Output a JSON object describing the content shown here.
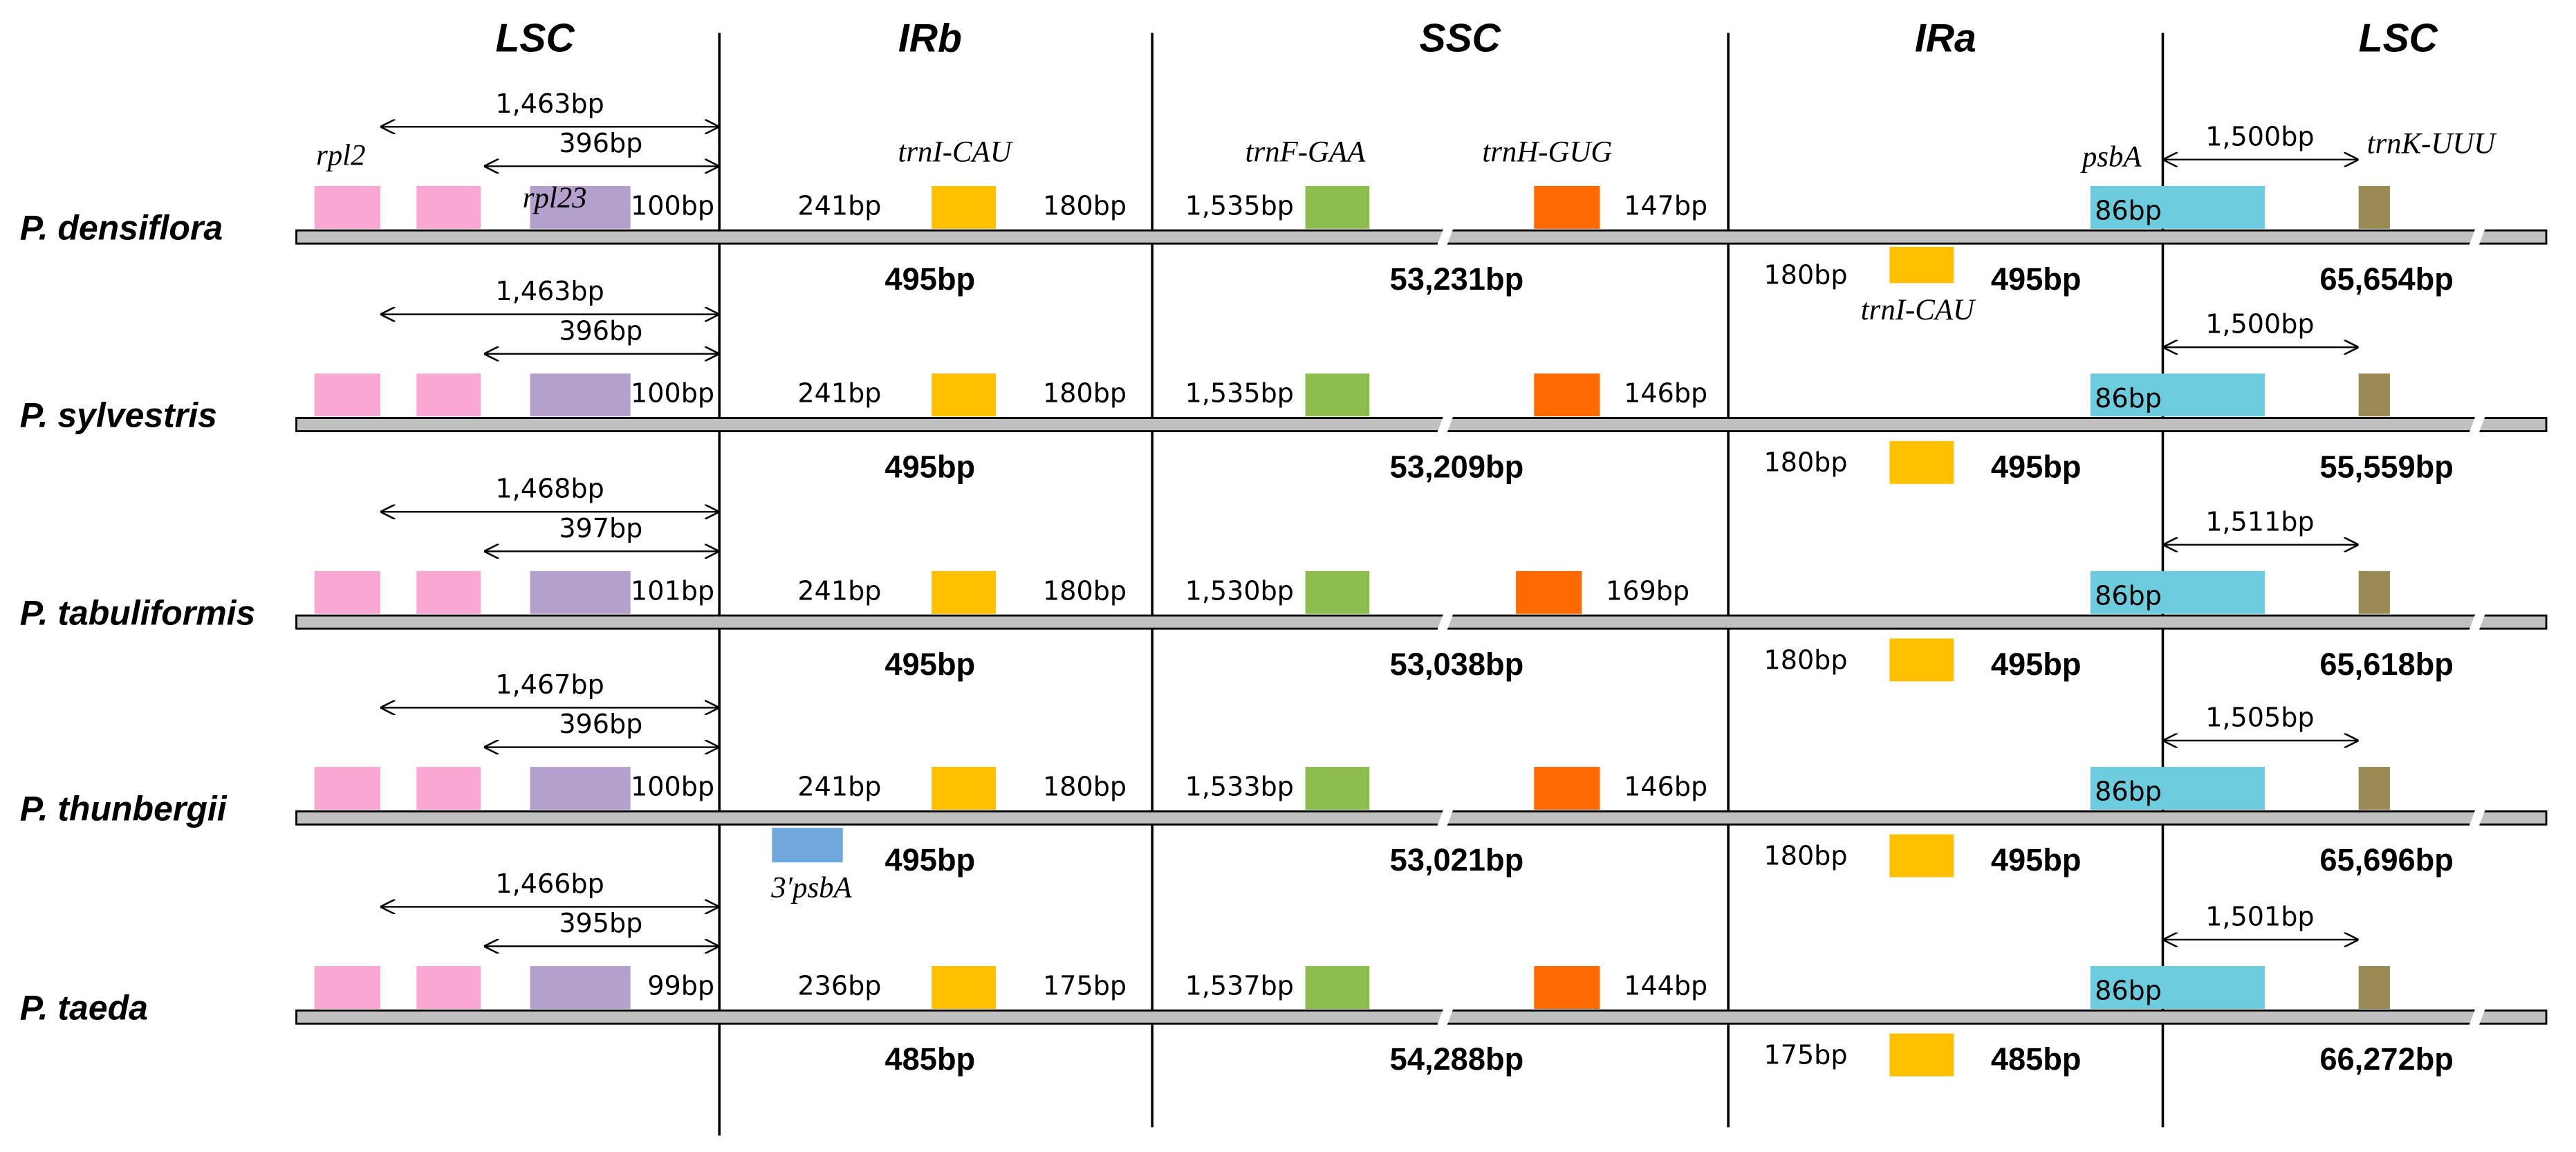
{
  "regions": [
    "LSC",
    "IRb",
    "SSC",
    "IRa",
    "LSC"
  ],
  "genes": {
    "rpl2": "rpl2",
    "rpl23": "rpl23",
    "trnI_irb": "trnI-CAU",
    "trnF": "trnF-GAA",
    "trnH": "trnH-GUG",
    "psbA": "psbA",
    "trnK": "trnK-UUU",
    "trnI_ira": "trnI-CAU",
    "psbA3": "3′psbA"
  },
  "rows": [
    {
      "species": "P. densiflora",
      "lsc_span": "1,463bp",
      "rpl23_span": "396bp",
      "rpl23_overlap": "100bp",
      "irb_left": "241bp",
      "irb_right": "180bp",
      "irb_length": "495bp",
      "ssc_left": "1,535bp",
      "ssc_right": "147bp",
      "ssc_length": "53,231bp",
      "ira_left": "180bp",
      "ira_length": "495bp",
      "psba_overlap": "86bp",
      "psba_span": "1,500bp",
      "lsc_length": "65,654bp"
    },
    {
      "species": "P. sylvestris",
      "lsc_span": "1,463bp",
      "rpl23_span": "396bp",
      "rpl23_overlap": "100bp",
      "irb_left": "241bp",
      "irb_right": "180bp",
      "irb_length": "495bp",
      "ssc_left": "1,535bp",
      "ssc_right": "146bp",
      "ssc_length": "53,209bp",
      "ira_left": "180bp",
      "ira_length": "495bp",
      "psba_overlap": "86bp",
      "psba_span": "1,500bp",
      "lsc_length": "55,559bp"
    },
    {
      "species": "P. tabuliformis",
      "lsc_span": "1,468bp",
      "rpl23_span": "397bp",
      "rpl23_overlap": "101bp",
      "irb_left": "241bp",
      "irb_right": "180bp",
      "irb_length": "495bp",
      "ssc_left": "1,530bp",
      "ssc_right": "169bp",
      "ssc_length": "53,038bp",
      "ira_left": "180bp",
      "ira_length": "495bp",
      "psba_overlap": "86bp",
      "psba_span": "1,511bp",
      "lsc_length": "65,618bp"
    },
    {
      "species": "P. thunbergii",
      "lsc_span": "1,467bp",
      "rpl23_span": "396bp",
      "rpl23_overlap": "100bp",
      "irb_left": "241bp",
      "irb_right": "180bp",
      "irb_length": "495bp",
      "ssc_left": "1,533bp",
      "ssc_right": "146bp",
      "ssc_length": "53,021bp",
      "ira_left": "180bp",
      "ira_length": "495bp",
      "psba_overlap": "86bp",
      "psba_span": "1,505bp",
      "lsc_length": "65,696bp"
    },
    {
      "species": "P. taeda",
      "lsc_span": "1,466bp",
      "rpl23_span": "395bp",
      "rpl23_overlap": "99bp",
      "irb_left": "236bp",
      "irb_right": "175bp",
      "irb_length": "485bp",
      "ssc_left": "1,537bp",
      "ssc_right": "144bp",
      "ssc_length": "54,288bp",
      "ira_left": "175bp",
      "ira_length": "485bp",
      "psba_overlap": "86bp",
      "psba_span": "1,501bp",
      "lsc_length": "66,272bp"
    }
  ]
}
